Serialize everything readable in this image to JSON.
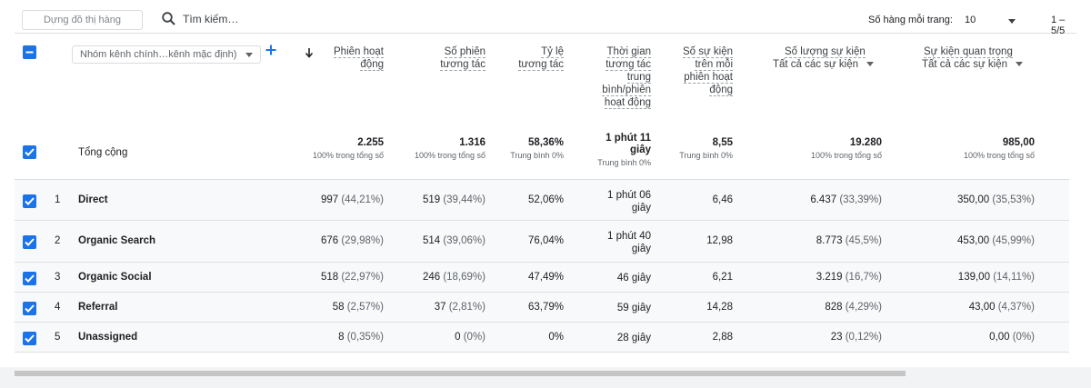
{
  "toolbar": {
    "plot_button": "Dựng đồ thị hàng",
    "search_placeholder": "Tìm kiếm…",
    "rows_per_page_label": "Số hàng mỗi trang:",
    "rows_per_page_value": "10",
    "range": "1 – 5/5"
  },
  "dimension": {
    "select_label": "Nhóm kênh chính…kênh mặc định)"
  },
  "headers": {
    "sessions": [
      "Phiên hoạt",
      "động"
    ],
    "engaged": [
      "Số phiên",
      "tương tác"
    ],
    "rate": [
      "Tỷ lệ",
      "tương tác"
    ],
    "avg_time": [
      "Thời gian",
      "tương tác",
      "trung",
      "bình/phiên",
      "hoạt động"
    ],
    "events_per": [
      "Số sự kiện",
      "trên mỗi",
      "phiên hoạt",
      "động"
    ],
    "event_count": {
      "title": "Số lượng sự kiện",
      "filter": "Tất cả các sự kiện"
    },
    "key_events": {
      "title": "Sự kiện quan trọng",
      "filter": "Tất cả các sự kiện"
    }
  },
  "totals": {
    "label": "Tổng cộng",
    "sessions": "2.255",
    "sessions_sub": "100% trong tổng số",
    "engaged": "1.316",
    "engaged_sub": "100% trong tổng số",
    "rate": "58,36%",
    "rate_sub": "Trung bình 0%",
    "avg_time_1": "1 phút 11",
    "avg_time_2": "giây",
    "avg_time_sub": "Trung bình 0%",
    "events_per": "8,55",
    "events_per_sub": "Trung bình 0%",
    "event_count": "19.280",
    "event_count_sub": "100% trong tổng số",
    "key_events": "985,00",
    "key_events_sub": "100% trong tổng số"
  },
  "rows": [
    {
      "idx": "1",
      "name": "Direct",
      "sessions": "997",
      "sessions_pct": "(44,21%)",
      "engaged": "519",
      "engaged_pct": "(39,44%)",
      "rate": "52,06%",
      "avg_time_1": "1 phút 06",
      "avg_time_2": "giây",
      "events_per": "6,46",
      "event_count": "6.437",
      "event_count_pct": "(33,39%)",
      "key_events": "350,00",
      "key_events_pct": "(35,53%)"
    },
    {
      "idx": "2",
      "name": "Organic Search",
      "sessions": "676",
      "sessions_pct": "(29,98%)",
      "engaged": "514",
      "engaged_pct": "(39,06%)",
      "rate": "76,04%",
      "avg_time_1": "1 phút 40",
      "avg_time_2": "giây",
      "events_per": "12,98",
      "event_count": "8.773",
      "event_count_pct": "(45,5%)",
      "key_events": "453,00",
      "key_events_pct": "(45,99%)"
    },
    {
      "idx": "3",
      "name": "Organic Social",
      "sessions": "518",
      "sessions_pct": "(22,97%)",
      "engaged": "246",
      "engaged_pct": "(18,69%)",
      "rate": "47,49%",
      "avg_time_1": "46 giây",
      "avg_time_2": "",
      "events_per": "6,21",
      "event_count": "3.219",
      "event_count_pct": "(16,7%)",
      "key_events": "139,00",
      "key_events_pct": "(14,11%)"
    },
    {
      "idx": "4",
      "name": "Referral",
      "sessions": "58",
      "sessions_pct": "(2,57%)",
      "engaged": "37",
      "engaged_pct": "(2,81%)",
      "rate": "63,79%",
      "avg_time_1": "59 giây",
      "avg_time_2": "",
      "events_per": "14,28",
      "event_count": "828",
      "event_count_pct": "(4,29%)",
      "key_events": "43,00",
      "key_events_pct": "(4,37%)"
    },
    {
      "idx": "5",
      "name": "Unassigned",
      "sessions": "8",
      "sessions_pct": "(0,35%)",
      "engaged": "0",
      "engaged_pct": "(0%)",
      "rate": "0%",
      "avg_time_1": "28 giây",
      "avg_time_2": "",
      "events_per": "2,88",
      "event_count": "23",
      "event_count_pct": "(0,12%)",
      "key_events": "0,00",
      "key_events_pct": "(0%)"
    }
  ]
}
